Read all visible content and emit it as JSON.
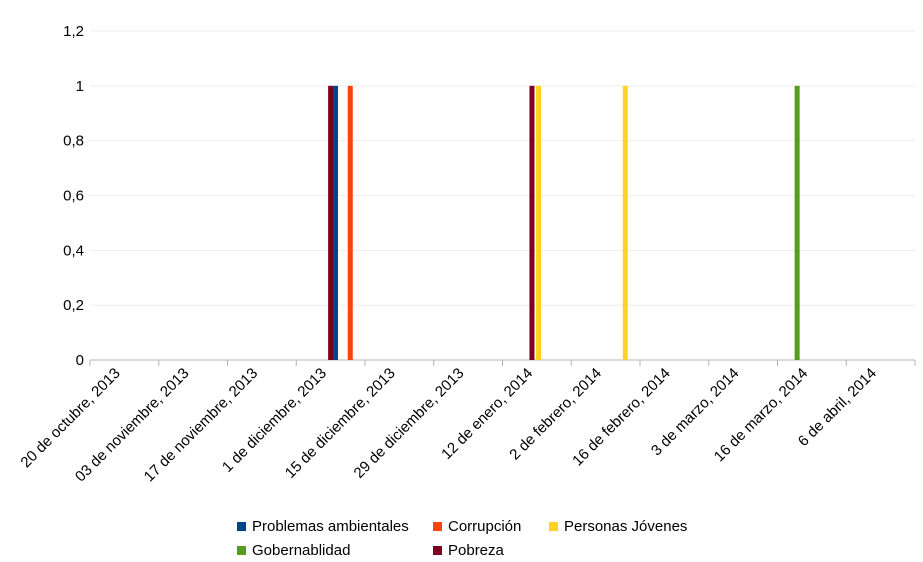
{
  "chart_data": {
    "type": "bar",
    "title": "",
    "xlabel": "",
    "ylabel": "",
    "ylim": [
      0,
      1.2
    ],
    "y_ticks": [
      "0",
      "0,2",
      "0,4",
      "0,6",
      "0,8",
      "1",
      "1,2"
    ],
    "categories": [
      "20 de octubre, 2013",
      "03 de noviembre, 2013",
      "17 de noviembre, 2013",
      "1 de diciembre, 2013",
      "15 de diciembre, 2013",
      "29 de diciembre, 2013",
      "12 de enero, 2014",
      "2 de febrero, 2014",
      "16 de febrero, 2014",
      "3 de marzo, 2014",
      "16 de marzo, 2014",
      "6 de abril, 2014"
    ],
    "grid": true,
    "legend_position": "bottom",
    "series": [
      {
        "name": "Problemas ambientales",
        "color": "#004586",
        "points": [
          {
            "x": "9 de diciembre, 2013",
            "y": 1
          }
        ]
      },
      {
        "name": "Corrupción",
        "color": "#ff420e",
        "points": [
          {
            "x": "12 de diciembre, 2013",
            "y": 1
          }
        ]
      },
      {
        "name": "Personas Jóvenes",
        "color": "#ffd320",
        "points": [
          {
            "x": "23 de enero, 2014",
            "y": 1
          },
          {
            "x": "13 de febrero, 2014",
            "y": 1
          }
        ]
      },
      {
        "name": "Gobernablidad",
        "color": "#579d1c",
        "points": [
          {
            "x": "22 de marzo, 2014",
            "y": 1
          }
        ]
      },
      {
        "name": "Pobreza",
        "color": "#7e0021",
        "points": [
          {
            "x": "8 de diciembre, 2013",
            "y": 1
          },
          {
            "x": "21 de enero, 2014",
            "y": 1
          }
        ]
      }
    ]
  }
}
